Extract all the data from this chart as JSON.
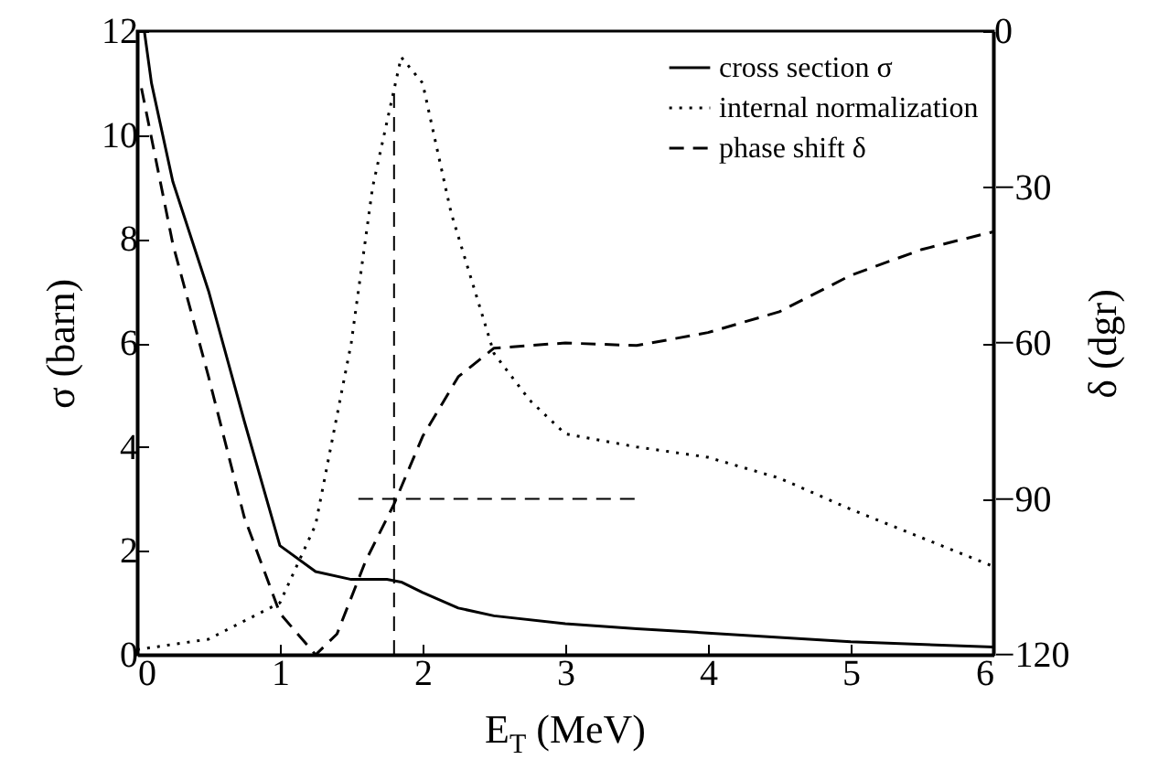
{
  "chart_data": {
    "type": "line",
    "xlabel": "E$_{T}$ (MeV)",
    "ylabel": "σ  (barn)",
    "y2label": "δ  (dgr)",
    "xlim": [
      0,
      6
    ],
    "xticks": [
      0,
      1,
      2,
      3,
      4,
      5,
      6
    ],
    "ylim": [
      0,
      12
    ],
    "yticks": [
      0,
      2,
      4,
      6,
      8,
      10,
      12
    ],
    "y2lim": [
      -120,
      0
    ],
    "y2ticks": [
      -120,
      -90,
      -60,
      -30,
      0
    ],
    "grid": false,
    "legend": "top right",
    "marker": "none",
    "series": [
      {
        "name": "cross section σ",
        "color": "#000000",
        "line_style": "solid",
        "x": [
          0.05,
          0.1,
          0.25,
          0.5,
          0.75,
          1.0,
          1.25,
          1.5,
          1.75,
          1.85,
          2.0,
          2.25,
          2.5,
          3.0,
          3.5,
          4.0,
          5.0,
          6.0
        ],
        "values": [
          12,
          11,
          9.1,
          7.0,
          4.5,
          2.1,
          1.6,
          1.45,
          1.45,
          1.4,
          1.2,
          0.9,
          0.75,
          0.6,
          0.5,
          0.42,
          0.25,
          0.15
        ]
      },
      {
        "name": "internal normalization",
        "color": "#000000",
        "line_style": "dotted",
        "x": [
          0,
          0.5,
          1.0,
          1.25,
          1.5,
          1.65,
          1.85,
          2.0,
          2.2,
          2.5,
          2.75,
          3.0,
          3.5,
          4.0,
          4.5,
          5.0,
          5.5,
          6.0
        ],
        "values": [
          0.1,
          0.3,
          1.0,
          2.5,
          6.0,
          9.0,
          11.5,
          11.0,
          8.5,
          5.8,
          4.9,
          4.25,
          4.0,
          3.8,
          3.4,
          2.8,
          2.25,
          1.7
        ]
      },
      {
        "name": "phase shift δ",
        "color": "#000000",
        "line_style": "dashed",
        "axis": "y2",
        "x": [
          0.03,
          0.25,
          0.5,
          0.75,
          1.0,
          1.25,
          1.4,
          1.6,
          1.8,
          2.0,
          2.25,
          2.5,
          3.0,
          3.5,
          4.0,
          4.5,
          5.0,
          5.5,
          6.0
        ],
        "values": [
          -11,
          -41,
          -66.5,
          -93.5,
          -112,
          -120,
          -116,
          -102,
          -91,
          -78,
          -66.5,
          -61,
          -60,
          -60.5,
          -58,
          -54,
          -47,
          -42,
          -38.6
        ]
      },
      {
        "type": "line",
        "color": "#000000",
        "line_style": "dashed",
        "x": [
          1.8,
          1.8
        ],
        "values": [
          0,
          10.9
        ]
      },
      {
        "type": "line",
        "color": "#000000",
        "line_style": "dashed",
        "x": [
          1.55,
          3.5
        ],
        "values": [
          3,
          3
        ]
      }
    ]
  }
}
